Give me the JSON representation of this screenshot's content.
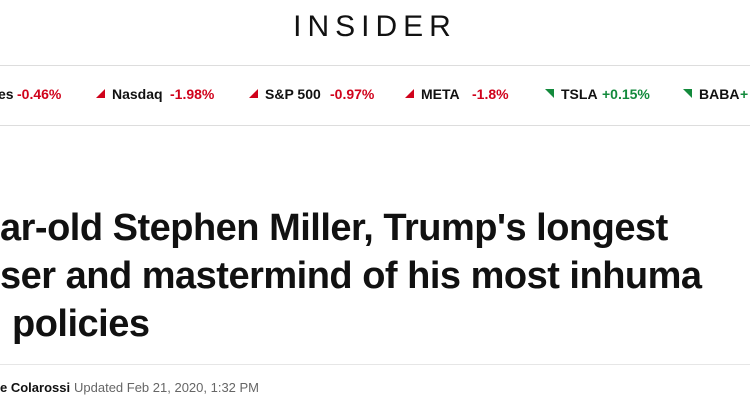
{
  "header": {
    "title": "INSIDER"
  },
  "ticker": [
    {
      "name": "es",
      "change": "-0.46%"
    },
    {
      "name": "Nasdaq",
      "change": "-1.98%"
    },
    {
      "name": "S&P 500",
      "change": "-0.97%"
    },
    {
      "name": "META",
      "change": "-1.8%"
    },
    {
      "name": "TSLA",
      "change": "+0.15%"
    },
    {
      "name": "BABA",
      "change": "+"
    }
  ],
  "headline": {
    "lines": [
      "ar-old Stephen Miller, Trump's longest",
      "ser and mastermind of his most inhuma",
      "policies"
    ]
  },
  "byline": {
    "author": "e Colarossi",
    "updated": "Updated Feb 21, 2020, 1:32 PM"
  }
}
